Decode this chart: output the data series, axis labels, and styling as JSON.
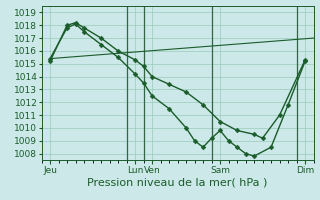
{
  "xlabel": "Pression niveau de la mer( hPa )",
  "bg_color": "#cce8e8",
  "grid_color": "#99ccbb",
  "line_color": "#1a5c2a",
  "vline_color": "#336644",
  "ylim": [
    1007.5,
    1019.5
  ],
  "yticks": [
    1008,
    1009,
    1010,
    1011,
    1012,
    1013,
    1014,
    1015,
    1016,
    1017,
    1018,
    1019
  ],
  "xlim": [
    0,
    16
  ],
  "xtick_labels": [
    "Jeu",
    "Lun",
    "Ven",
    "Sam",
    "Dim"
  ],
  "xtick_positions": [
    0.5,
    5.5,
    6.5,
    10.5,
    15.5
  ],
  "vlines_x": [
    5.0,
    6.0,
    10.0,
    15.0
  ],
  "line1_x": [
    0.5,
    1.5,
    2.0,
    2.5,
    3.5,
    4.5,
    5.5,
    6.0,
    6.5,
    7.5,
    8.5,
    9.5,
    10.5,
    11.5,
    12.5,
    13.0,
    14.0,
    15.5
  ],
  "line1_y": [
    1015.2,
    1018.0,
    1018.2,
    1017.8,
    1017.0,
    1016.0,
    1015.3,
    1014.8,
    1014.0,
    1013.4,
    1012.8,
    1011.8,
    1010.5,
    1009.8,
    1009.5,
    1009.2,
    1011.0,
    1015.3
  ],
  "line2_x": [
    0.5,
    1.5,
    2.0,
    2.5,
    3.5,
    4.5,
    5.5,
    6.0,
    6.5,
    7.5,
    8.5,
    9.0,
    9.5,
    10.0,
    10.5,
    11.0,
    11.5,
    12.0,
    12.5,
    13.5,
    14.5,
    15.5
  ],
  "line2_y": [
    1015.4,
    1017.8,
    1018.1,
    1017.5,
    1016.5,
    1015.5,
    1014.2,
    1013.5,
    1012.5,
    1011.5,
    1010.0,
    1009.0,
    1008.5,
    1009.2,
    1009.8,
    1009.0,
    1008.5,
    1008.0,
    1007.8,
    1008.5,
    1011.8,
    1015.2
  ],
  "line3_x": [
    0.5,
    16.0
  ],
  "line3_y": [
    1015.4,
    1017.0
  ],
  "xlabel_fontsize": 8,
  "tick_fontsize": 6.5,
  "marker_size": 2.5,
  "line_width": 1.0
}
